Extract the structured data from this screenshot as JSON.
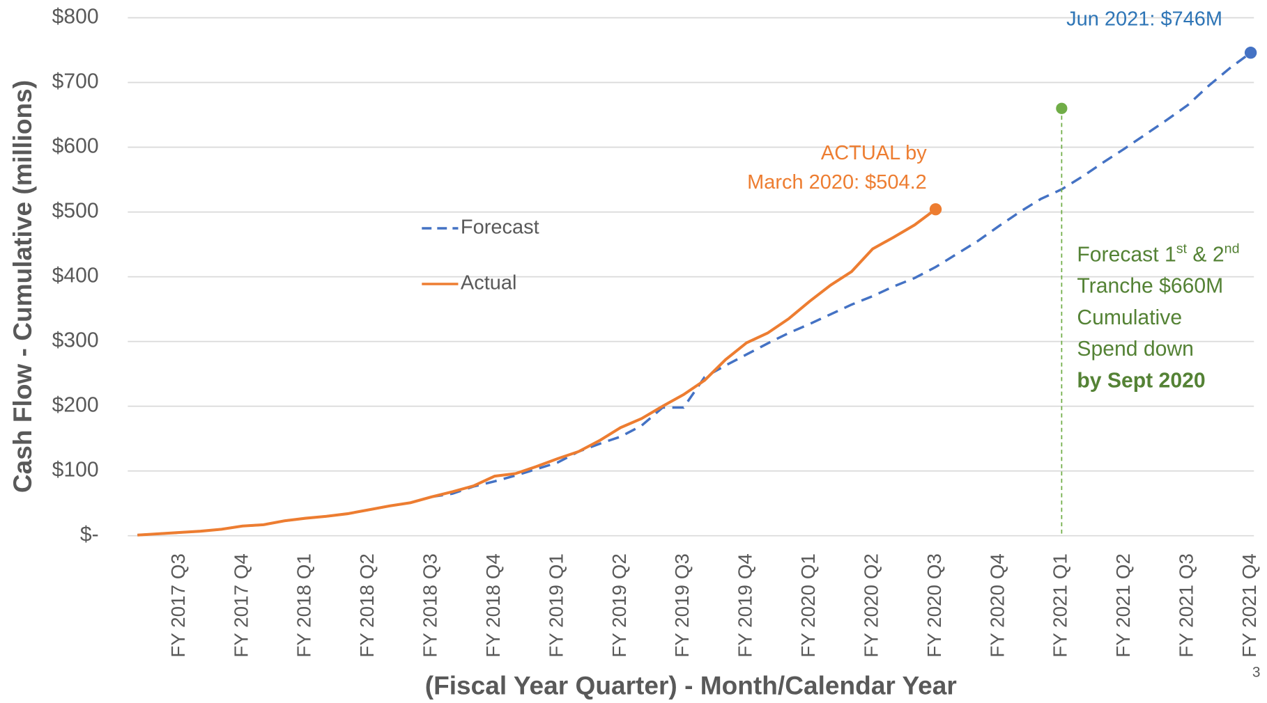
{
  "chart_data": {
    "type": "line",
    "y_label": "Cash Flow - Cumulative (millions)",
    "x_label": "(Fiscal Year Quarter) - Month/Calendar Year",
    "categories": [
      null,
      null,
      "FY 2017 Q3",
      null,
      null,
      "FY 2017 Q4",
      null,
      null,
      "FY 2018 Q1",
      null,
      null,
      "FY 2018 Q2",
      null,
      null,
      "FY 2018 Q3",
      null,
      null,
      "FY 2018 Q4",
      null,
      null,
      "FY 2019 Q1",
      null,
      null,
      "FY 2019 Q2",
      null,
      null,
      "FY 2019 Q3",
      null,
      null,
      "FY 2019 Q4",
      null,
      null,
      "FY 2020 Q1",
      null,
      null,
      "FY 2020 Q2",
      null,
      null,
      "FY 2020 Q3",
      null,
      null,
      "FY 2020 Q4",
      null,
      null,
      "FY 2021 Q1",
      null,
      null,
      "FY 2021 Q2",
      null,
      null,
      "FY 2021 Q3",
      null,
      null,
      "FY 2021 Q4"
    ],
    "series": [
      {
        "name": "Forecast",
        "color": "#4472c4",
        "dashed": true,
        "values": [
          1,
          3,
          5,
          7,
          10,
          15,
          17,
          23,
          27,
          30,
          34,
          40,
          46,
          51,
          60,
          65,
          76,
          84,
          93,
          103,
          113,
          130,
          142,
          153,
          170,
          198,
          198,
          245,
          263,
          280,
          297,
          313,
          327,
          342,
          357,
          370,
          385,
          398,
          415,
          435,
          455,
          478,
          500,
          520,
          535,
          555,
          577,
          598,
          620,
          642,
          665,
          695,
          722,
          746
        ]
      },
      {
        "name": "Actual",
        "color": "#ed7d31",
        "dashed": false,
        "values": [
          1,
          3,
          5,
          7,
          10,
          15,
          17,
          23,
          27,
          30,
          34,
          40,
          46,
          51,
          60,
          68,
          77,
          92,
          96,
          107,
          119,
          130,
          147,
          167,
          181,
          200,
          218,
          240,
          272,
          298,
          313,
          335,
          362,
          387,
          408,
          443,
          461,
          480,
          504.2,
          null,
          null,
          null,
          null,
          null,
          null,
          null,
          null,
          null,
          null,
          null,
          null,
          null,
          null,
          null
        ]
      }
    ],
    "ylim": [
      0,
      800
    ],
    "yticks": [
      {
        "value": 0,
        "label": "$-"
      },
      {
        "value": 100,
        "label": "$100"
      },
      {
        "value": 200,
        "label": "$200"
      },
      {
        "value": 300,
        "label": "$300"
      },
      {
        "value": 400,
        "label": "$400"
      },
      {
        "value": 500,
        "label": "$500"
      },
      {
        "value": 600,
        "label": "$600"
      },
      {
        "value": 700,
        "label": "$700"
      },
      {
        "value": 800,
        "label": "$800"
      }
    ],
    "grid": true,
    "legend": "left",
    "annotations": {
      "actual": [
        "ACTUAL by",
        "March 2020: $504.2"
      ],
      "forecast": "Jun 2021: $746M",
      "tranche": {
        "category": "FY 2021 Q1",
        "value": 660,
        "color": "#70ad47",
        "text_color": "#548235",
        "lines": [
          [
            "Forecast 1",
            "st",
            " & 2",
            "nd"
          ],
          [
            "Tranche $660M"
          ],
          [
            "Cumulative"
          ],
          [
            "Spend down"
          ],
          [
            "by Sept 2020"
          ]
        ]
      }
    },
    "page_number": "3"
  }
}
